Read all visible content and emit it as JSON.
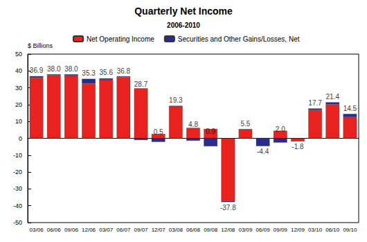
{
  "chart_data": {
    "type": "bar",
    "title": "Quarterly Net Income",
    "subtitle": "2006-2010",
    "y_label": "$ Billions",
    "categories": [
      "03/06",
      "06/06",
      "09/06",
      "12/06",
      "03/07",
      "06/07",
      "09/07",
      "12/07",
      "03/08",
      "06/08",
      "09/08",
      "12/08",
      "03/09",
      "06/09",
      "09/09",
      "12/09",
      "03/10",
      "06/10",
      "09/10"
    ],
    "series": [
      {
        "name": "Net Operating Income",
        "color": "#e8231f",
        "values": [
          36.0,
          37.5,
          37.3,
          32.6,
          34.8,
          36.3,
          29.7,
          2.6,
          18.8,
          6.2,
          5.6,
          -37.0,
          5.3,
          0.2,
          4.5,
          -1.6,
          16.9,
          20.2,
          12.6
        ]
      },
      {
        "name": "Securities and Other Gains/Losses, Net",
        "color": "#2b2b8c",
        "values": [
          0.9,
          0.5,
          0.7,
          2.7,
          0.8,
          0.5,
          -1.0,
          -2.1,
          0.5,
          -1.4,
          -4.7,
          -0.8,
          0.2,
          -4.6,
          -2.5,
          -0.2,
          0.8,
          1.2,
          1.9
        ]
      }
    ],
    "totals": [
      36.9,
      38.0,
      38.0,
      35.3,
      35.6,
      36.8,
      28.7,
      0.5,
      19.3,
      4.8,
      0.9,
      -37.8,
      5.5,
      -4.4,
      2.0,
      -1.8,
      17.7,
      21.4,
      14.5
    ],
    "total_labels": [
      "36.9",
      "38.0",
      "38.0",
      "35.3",
      "35.6",
      "36.8",
      "28.7",
      "0.5",
      "19.3",
      "4.8",
      "0.9",
      "-37.8",
      "5.5",
      "-4.4",
      "2.0",
      "-1.8",
      "17.7",
      "21.4",
      "14.5"
    ],
    "stacked": true,
    "ylim": [
      -50,
      50
    ],
    "yticks": [
      -50,
      -40,
      -30,
      -20,
      -10,
      0,
      10,
      20,
      30,
      40,
      50
    ],
    "grid": false,
    "legend": "upper left"
  }
}
